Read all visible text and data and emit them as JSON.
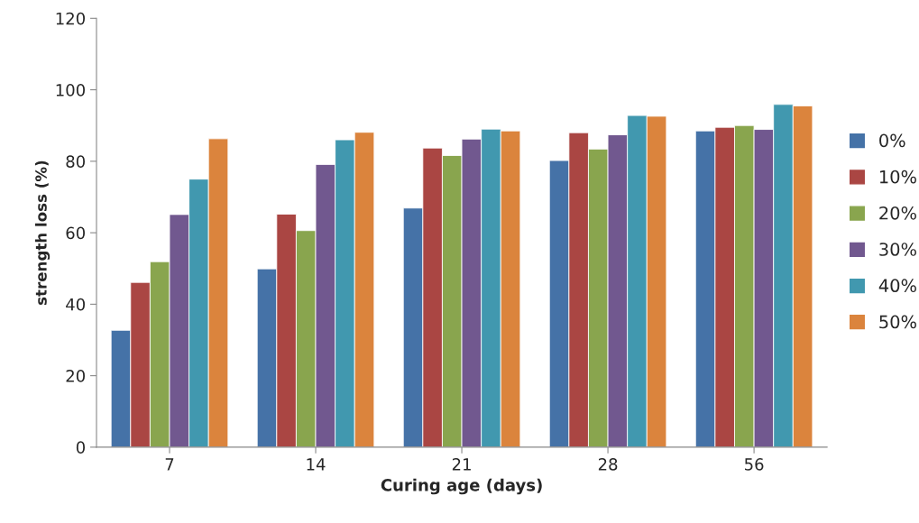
{
  "chart_data": {
    "type": "bar",
    "xlabel": "Curing age (days)",
    "ylabel": "strength loss (%)",
    "categories": [
      "7",
      "14",
      "21",
      "28",
      "56"
    ],
    "series": [
      {
        "name": "0%",
        "color": "#4572a7",
        "values": [
          32.7,
          49.9,
          66.9,
          80.2,
          88.5
        ]
      },
      {
        "name": "10%",
        "color": "#aa4643",
        "values": [
          46.1,
          65.2,
          83.7,
          88.0,
          89.5
        ]
      },
      {
        "name": "20%",
        "color": "#89a54e",
        "values": [
          51.9,
          60.6,
          81.6,
          83.4,
          90.0
        ]
      },
      {
        "name": "30%",
        "color": "#71588f",
        "values": [
          65.1,
          79.1,
          86.2,
          87.4,
          88.9
        ]
      },
      {
        "name": "40%",
        "color": "#4198af",
        "values": [
          75.0,
          86.0,
          89.0,
          92.8,
          95.9
        ]
      },
      {
        "name": "50%",
        "color": "#db843d",
        "values": [
          86.3,
          88.1,
          88.5,
          92.6,
          95.5
        ]
      }
    ],
    "ylim": [
      0,
      120
    ],
    "yticks": [
      0,
      20,
      40,
      60,
      80,
      100,
      120
    ],
    "grid": false,
    "legend": "right"
  }
}
